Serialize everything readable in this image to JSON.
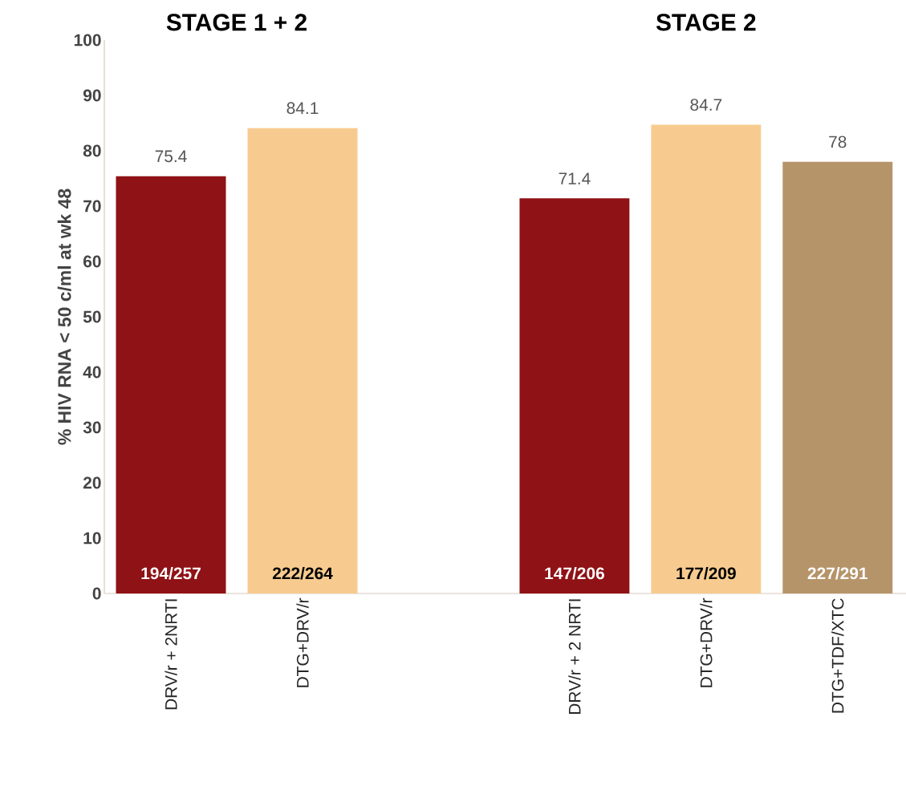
{
  "chart_data": [
    {
      "type": "bar",
      "title": "STAGE 1 + 2",
      "ylabel": "% HIV RNA < 50 c/ml at wk 48",
      "categories": [
        "DRV/r + 2NRTI",
        "DTG+DRV/r"
      ],
      "values": [
        75.4,
        84.1
      ],
      "colors": [
        "#8f1216",
        "#f7cb8f"
      ],
      "ylim": [
        0,
        100
      ],
      "yticks": [
        0,
        10,
        20,
        30,
        40,
        50,
        60,
        70,
        80,
        90,
        100
      ],
      "data_labels": true,
      "annotations": [
        "194/257",
        "222/264"
      ]
    },
    {
      "type": "bar",
      "title": "STAGE 2",
      "categories": [
        "DRV/r + 2 NRTI",
        "DTG+DRV/r",
        "DTG+TDF/XTC"
      ],
      "values": [
        71.4,
        84.7,
        78
      ],
      "colors": [
        "#8f1216",
        "#f7cb8f",
        "#b6946a"
      ],
      "ylim": [
        0,
        100
      ],
      "tick_labels": "x",
      "data_labels": true,
      "annotations": [
        "147/206",
        "177/209",
        "227/291"
      ]
    }
  ]
}
